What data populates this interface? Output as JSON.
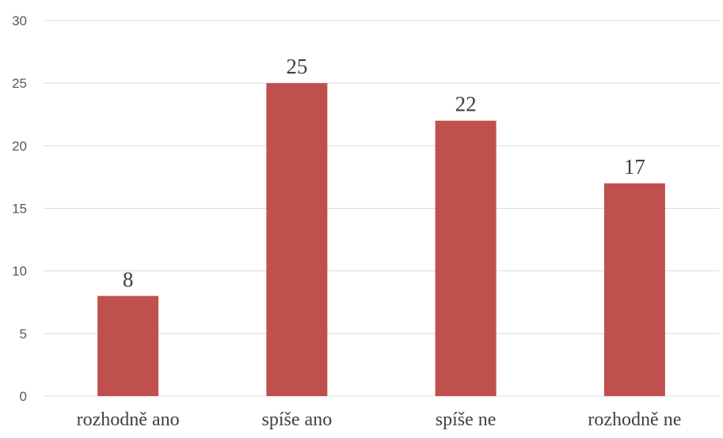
{
  "chart_data": {
    "type": "bar",
    "categories": [
      "rozhodně ano",
      "spíše ano",
      "spíše ne",
      "rozhodně ne"
    ],
    "values": [
      8,
      25,
      22,
      17
    ],
    "data_labels": [
      "8",
      "25",
      "22",
      "17"
    ],
    "yticks": [
      "0",
      "5",
      "10",
      "15",
      "20",
      "25",
      "30"
    ],
    "ylim": [
      0,
      30
    ],
    "grid": true,
    "legend": "none",
    "bar_color": "#c0504d",
    "title": "",
    "xlabel": "",
    "ylabel": ""
  }
}
